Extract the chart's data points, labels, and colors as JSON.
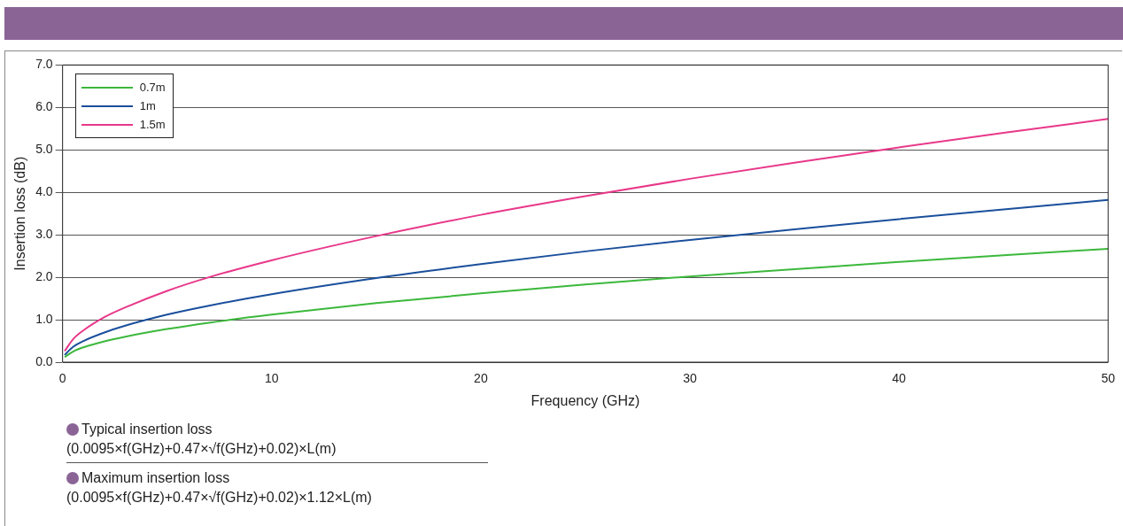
{
  "chart_data": {
    "type": "line",
    "xlabel": "Frequency (GHz)",
    "ylabel": "Insertion loss (dB)",
    "x": [
      0.1,
      0.5,
      1,
      2,
      3,
      5,
      7,
      10,
      15,
      20,
      25,
      30,
      35,
      40,
      45,
      50
    ],
    "series": [
      {
        "name": "0.7m",
        "color": "#3cb83c",
        "values": [
          0.12,
          0.25,
          0.35,
          0.49,
          0.6,
          0.78,
          0.93,
          1.12,
          1.39,
          1.62,
          1.83,
          2.02,
          2.19,
          2.36,
          2.52,
          2.67
        ]
      },
      {
        "name": "1m",
        "color": "#1a4f9c",
        "values": [
          0.17,
          0.36,
          0.5,
          0.7,
          0.86,
          1.12,
          1.33,
          1.6,
          1.98,
          2.31,
          2.61,
          2.88,
          3.13,
          3.37,
          3.6,
          3.82
        ]
      },
      {
        "name": "1.5m",
        "color": "#e8388a",
        "values": [
          0.26,
          0.54,
          0.75,
          1.06,
          1.29,
          1.68,
          2.0,
          2.4,
          2.97,
          3.47,
          3.91,
          4.32,
          4.7,
          5.06,
          5.4,
          5.73
        ]
      }
    ],
    "xlim": [
      0,
      50
    ],
    "xticks": [
      0,
      10,
      20,
      30,
      40,
      50
    ],
    "ylim": [
      0,
      7
    ],
    "yticks": [
      {
        "value": 0,
        "label": "0.0"
      },
      {
        "value": 1,
        "label": "1.0"
      },
      {
        "value": 2,
        "label": "2.0"
      },
      {
        "value": 3,
        "label": "3.0"
      },
      {
        "value": 4,
        "label": "4.0"
      },
      {
        "value": 5,
        "label": "5.0"
      },
      {
        "value": 6,
        "label": "6.0"
      },
      {
        "value": 7,
        "label": "7.0"
      }
    ],
    "grid": "y",
    "legend": "top left",
    "marker": "none",
    "line_style": "solid",
    "annotations": [
      "Typical insertion loss",
      "(0.0095×f(GHz)+0.47×√f(GHz)+0.02)×L(m)",
      "Maximum insertion loss",
      "(0.0095×f(GHz)+0.47×√f(GHz)+0.02)×1.12×L(m)"
    ]
  }
}
